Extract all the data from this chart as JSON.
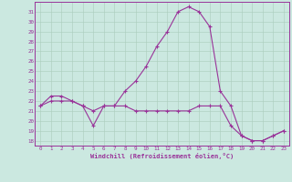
{
  "xlabel": "Windchill (Refroidissement éolien,°C)",
  "background_color": "#cbe8e0",
  "line_color": "#993399",
  "hours": [
    0,
    1,
    2,
    3,
    4,
    5,
    6,
    7,
    8,
    9,
    10,
    11,
    12,
    13,
    14,
    15,
    16,
    17,
    18,
    19,
    20,
    21,
    22,
    23
  ],
  "temp": [
    21.5,
    22.5,
    22.5,
    22.0,
    21.5,
    21.0,
    21.5,
    21.5,
    23.0,
    24.0,
    25.5,
    27.5,
    29.0,
    31.0,
    31.5,
    31.0,
    29.5,
    23.0,
    21.5,
    18.5,
    18.0,
    18.0,
    18.5,
    19.0
  ],
  "windchill": [
    21.5,
    22.0,
    22.0,
    22.0,
    21.5,
    19.5,
    21.5,
    21.5,
    21.5,
    21.0,
    21.0,
    21.0,
    21.0,
    21.0,
    21.0,
    21.5,
    21.5,
    21.5,
    19.5,
    18.5,
    18.0,
    18.0,
    18.5,
    19.0
  ],
  "ylim": [
    17.5,
    32.0
  ],
  "yticks": [
    18,
    19,
    20,
    21,
    22,
    23,
    24,
    25,
    26,
    27,
    28,
    29,
    30,
    31
  ],
  "xlim": [
    -0.5,
    23.5
  ],
  "xticks": [
    0,
    1,
    2,
    3,
    4,
    5,
    6,
    7,
    8,
    9,
    10,
    11,
    12,
    13,
    14,
    15,
    16,
    17,
    18,
    19,
    20,
    21,
    22,
    23
  ]
}
